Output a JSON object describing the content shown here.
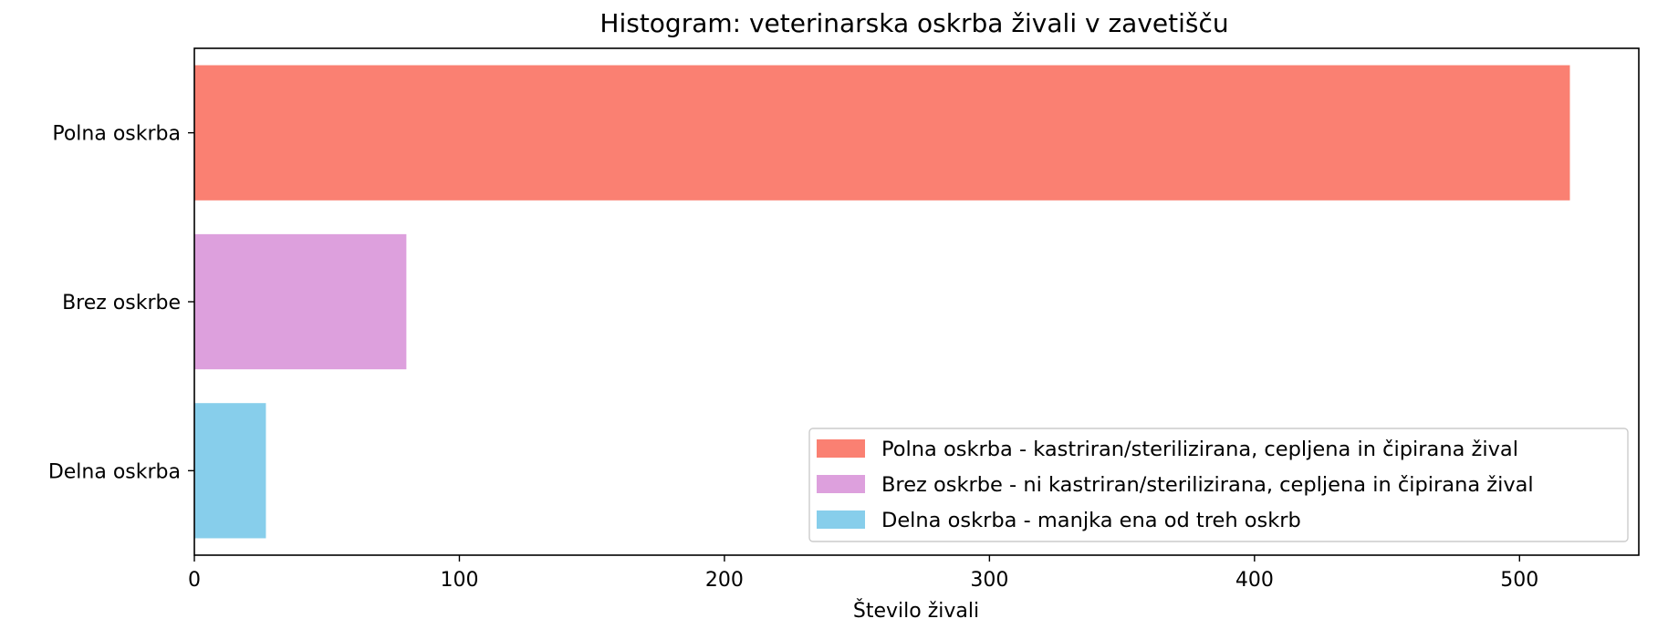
{
  "chart_data": {
    "type": "bar",
    "orientation": "horizontal",
    "title": "Histogram: veterinarska oskrba živali v zavetišču",
    "xlabel": "Število živali",
    "ylabel": "",
    "xlim": [
      0,
      545
    ],
    "xticks": [
      0,
      100,
      200,
      300,
      400,
      500
    ],
    "grid": false,
    "legend_position": "lower-right",
    "categories": [
      "Polna oskrba",
      "Brez oskrbe",
      "Delna oskrba"
    ],
    "values": [
      519,
      80,
      27
    ],
    "colors": [
      "#fa8072",
      "#dda0dd",
      "#87ceeb"
    ],
    "legend": [
      {
        "label": "Polna oskrba - kastriran/sterilizirana, cepljena in čipirana žival",
        "color": "#fa8072"
      },
      {
        "label": "Brez oskrbe - ni kastriran/sterilizirana, cepljena in čipirana žival",
        "color": "#dda0dd"
      },
      {
        "label": "Delna oskrba - manjka ena od treh oskrb",
        "color": "#87ceeb"
      }
    ]
  }
}
